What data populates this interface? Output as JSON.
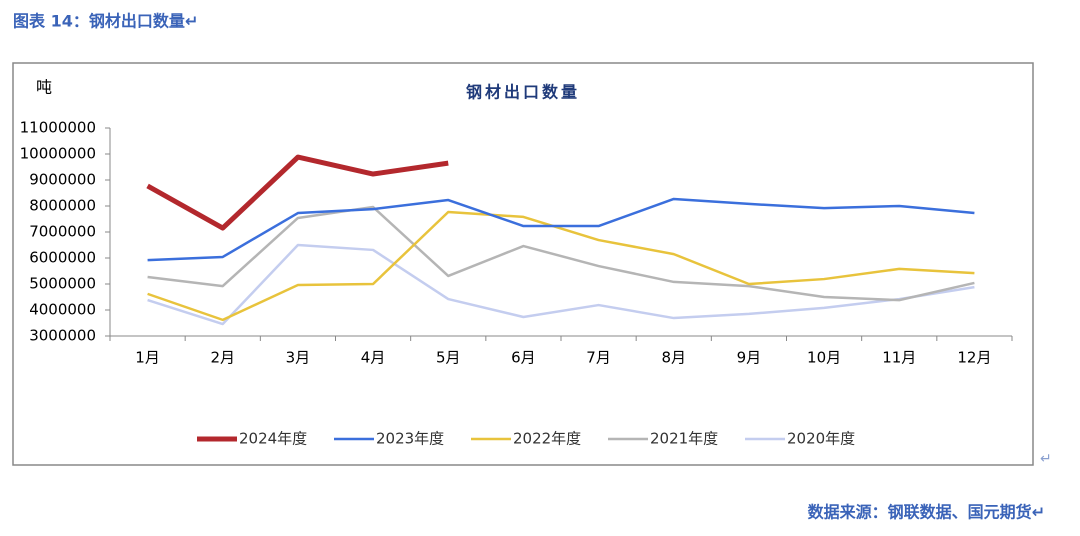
{
  "caption": "图表 14：钢材出口数量↵",
  "source": "数据来源：钢联数据、国元期货↵",
  "box_mark": "↵",
  "chart_data": {
    "type": "line",
    "title": "钢材出口数量",
    "y_label": "吨",
    "categories": [
      "1月",
      "2月",
      "3月",
      "4月",
      "5月",
      "6月",
      "7月",
      "8月",
      "9月",
      "10月",
      "11月",
      "12月"
    ],
    "ylim": [
      3000000,
      11000000
    ],
    "yticks": [
      3000000,
      4000000,
      5000000,
      6000000,
      7000000,
      8000000,
      9000000,
      10000000,
      11000000
    ],
    "grid": false,
    "legend": "bottom",
    "series": [
      {
        "name": "2024年度",
        "color": "#b3282d",
        "values": [
          8770000,
          7150000,
          9880000,
          9230000,
          9650000,
          null,
          null,
          null,
          null,
          null,
          null,
          null
        ]
      },
      {
        "name": "2023年度",
        "color": "#3b6fdc",
        "values": [
          5920000,
          6040000,
          7730000,
          7880000,
          8230000,
          7230000,
          7230000,
          8270000,
          8080000,
          7920000,
          8000000,
          7730000
        ]
      },
      {
        "name": "2022年度",
        "color": "#e8c33c",
        "values": [
          4620000,
          3620000,
          4960000,
          5000000,
          7770000,
          7580000,
          6690000,
          6150000,
          5000000,
          5190000,
          5580000,
          5420000
        ]
      },
      {
        "name": "2021年度",
        "color": "#b5b5b5",
        "values": [
          5270000,
          4920000,
          7540000,
          7960000,
          5310000,
          6460000,
          5690000,
          5080000,
          4920000,
          4500000,
          4380000,
          5040000
        ]
      },
      {
        "name": "2020年度",
        "color": "#c4cdef",
        "values": [
          4380000,
          3460000,
          6500000,
          6310000,
          4420000,
          3730000,
          4190000,
          3690000,
          3850000,
          4080000,
          4420000,
          4880000
        ]
      }
    ]
  }
}
